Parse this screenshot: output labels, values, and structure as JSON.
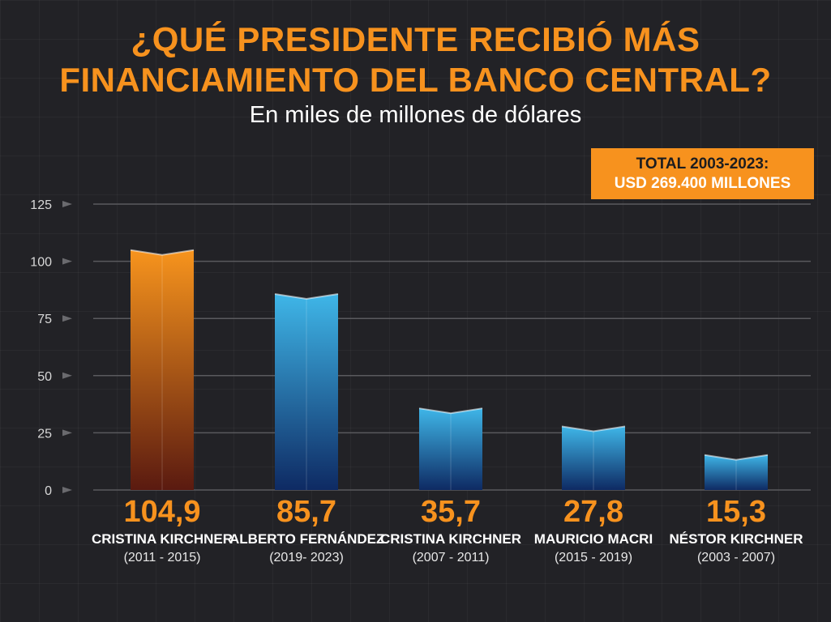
{
  "title_line1": "¿QUÉ PRESIDENTE RECIBIÓ MÁS",
  "title_line2": "FINANCIAMIENTO DEL BANCO CENTRAL?",
  "subtitle": "En miles de millones de dólares",
  "total": {
    "label": "TOTAL 2003-2023:",
    "value": "USD 269.400 MILLONES"
  },
  "colors": {
    "accent": "#f7921e",
    "bar_highlight_top": "#f7941d",
    "bar_highlight_bottom": "#5a1a10",
    "bar_top": "#3fb6e8",
    "bar_bottom": "#0e2a63",
    "grid": "#5a5a5e",
    "background": "#222226"
  },
  "chart_data": {
    "type": "bar",
    "title": "¿QUÉ PRESIDENTE RECIBIÓ MÁS FINANCIAMIENTO DEL BANCO CENTRAL?",
    "subtitle": "En miles de millones de dólares",
    "ylim": [
      0,
      125
    ],
    "yticks": [
      "0",
      "25",
      "50",
      "75",
      "100",
      "125"
    ],
    "grid": true,
    "categories": [
      "CRISTINA KIRCHNER",
      "ALBERTO FERNÁNDEZ",
      "CRISTINA KIRCHNER",
      "MAURICIO MACRI",
      "NÉSTOR KIRCHNER"
    ],
    "periods": [
      "(2011 - 2015)",
      "(2019- 2023)",
      "(2007 - 2011)",
      "(2015 - 2019)",
      "(2003 - 2007)"
    ],
    "values": [
      104.9,
      85.7,
      35.7,
      27.8,
      15.3
    ],
    "value_labels": [
      "104,9",
      "85,7",
      "35,7",
      "27,8",
      "15,3"
    ],
    "highlight_index": 0
  }
}
